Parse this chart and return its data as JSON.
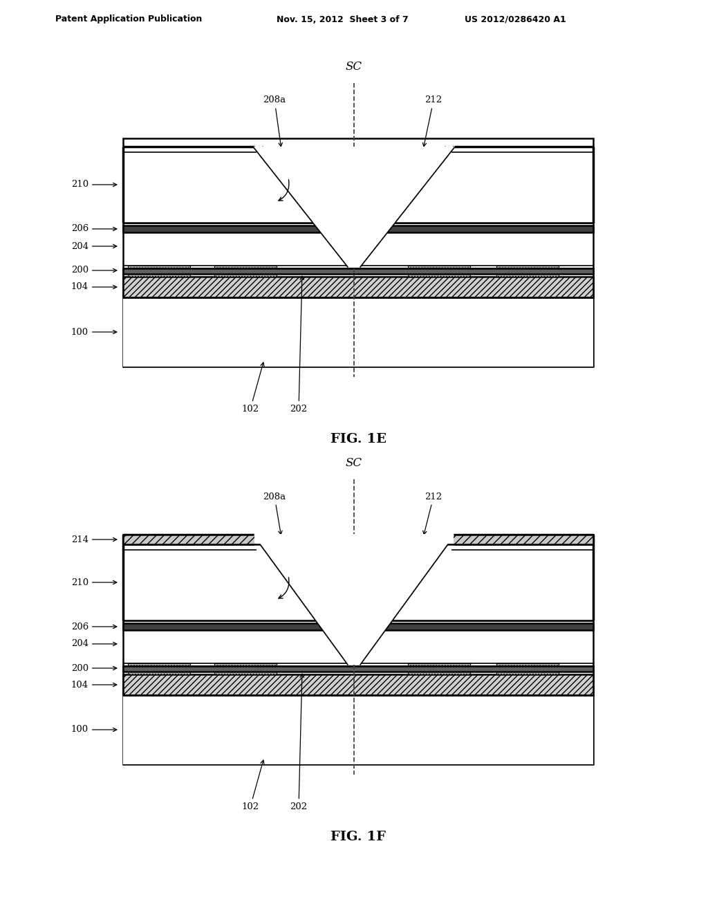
{
  "header_left": "Patent Application Publication",
  "header_mid": "Nov. 15, 2012  Sheet 3 of 7",
  "header_right": "US 2012/0286420 A1",
  "fig1e_label": "FIG. 1E",
  "fig1f_label": "FIG. 1F",
  "sc_label": "SC",
  "label_208a": "208a",
  "label_212": "212",
  "label_210": "210",
  "label_204": "204",
  "label_206": "206",
  "label_200": "200",
  "label_104": "104",
  "label_100": "100",
  "label_102": "102",
  "label_202": "202",
  "label_214": "214",
  "bg_color": "#ffffff",
  "line_color": "#000000"
}
